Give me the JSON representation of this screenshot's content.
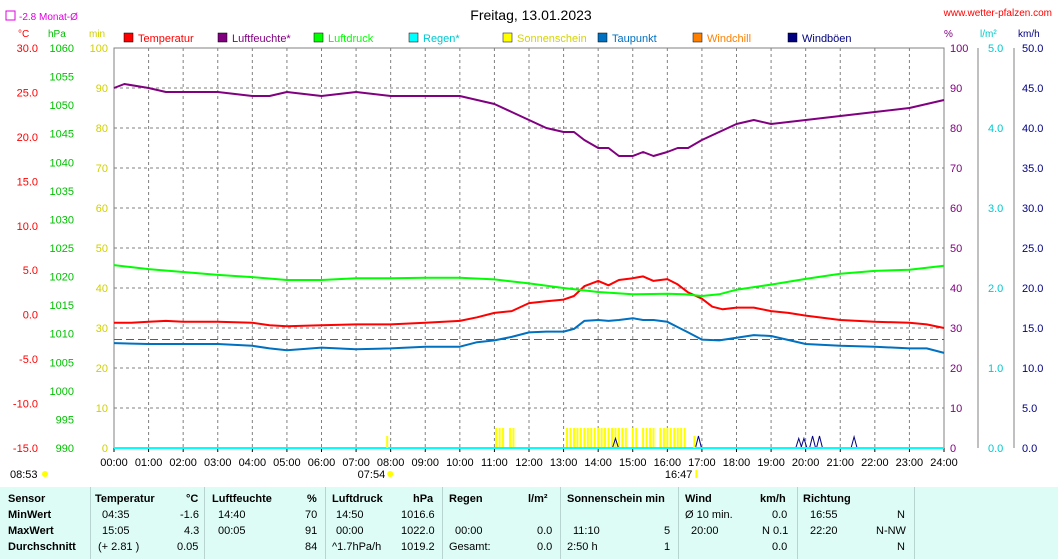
{
  "title": "Freitag, 13.01.2023",
  "website": "www.wetter-pfalzen.com",
  "monthly_avg_label": "-2.8 Monat-Ø",
  "units": {
    "temp": "°C",
    "pressure": "hPa",
    "sun": "min",
    "percent": "%",
    "rain": "l/m²",
    "wind": "km/h"
  },
  "legend": [
    {
      "label": "Temperatur",
      "color": "#ff0000"
    },
    {
      "label": "Luftfeuchte*",
      "color": "#800080"
    },
    {
      "label": "Luftdruck",
      "color": "#00ff00"
    },
    {
      "label": "Regen*",
      "color": "#00ffff"
    },
    {
      "label": "Sonnenschein",
      "color": "#ffff00"
    },
    {
      "label": "Taupunkt",
      "color": "#0070c0"
    },
    {
      "label": "Windchill",
      "color": "#ff8000"
    },
    {
      "label": "Windböen",
      "color": "#000080"
    }
  ],
  "sun_times": {
    "sunrise": "07:54",
    "sunset": "16:47",
    "first": "08:53"
  },
  "chart_data": {
    "type": "line",
    "title": "Freitag, 13.01.2023",
    "x_ticks": [
      "00:00",
      "01:00",
      "02:00",
      "03:00",
      "04:00",
      "05:00",
      "06:00",
      "07:00",
      "08:00",
      "09:00",
      "10:00",
      "11:00",
      "12:00",
      "13:00",
      "14:00",
      "15:00",
      "16:00",
      "17:00",
      "18:00",
      "19:00",
      "20:00",
      "21:00",
      "22:00",
      "23:00",
      "24:00"
    ],
    "axes": {
      "temp": {
        "unit": "°C",
        "ticks": [
          "30.0",
          "25.0",
          "20.0",
          "15.0",
          "10.0",
          "5.0",
          "0.0",
          "-5.0",
          "-10.0",
          "-15.0"
        ],
        "range": [
          -15,
          30
        ]
      },
      "pressure": {
        "unit": "hPa",
        "ticks": [
          "1060",
          "1055",
          "1050",
          "1045",
          "1040",
          "1035",
          "1030",
          "1025",
          "1020",
          "1015",
          "1010",
          "1005",
          "1000",
          "995",
          "990"
        ],
        "range": [
          990,
          1060
        ]
      },
      "sun": {
        "unit": "min",
        "ticks": [
          "100",
          "90",
          "80",
          "70",
          "60",
          "50",
          "40",
          "30",
          "20",
          "10",
          "0"
        ],
        "range": [
          0,
          100
        ]
      },
      "humidity": {
        "unit": "%",
        "ticks": [
          "100",
          "90",
          "80",
          "70",
          "60",
          "50",
          "40",
          "30",
          "20",
          "10",
          "0"
        ],
        "range": [
          0,
          100
        ]
      },
      "rain": {
        "unit": "l/m²",
        "ticks": [
          "5.0",
          "4.0",
          "3.0",
          "2.0",
          "1.0",
          "0.0"
        ],
        "range": [
          0,
          5
        ]
      },
      "wind": {
        "unit": "km/h",
        "ticks": [
          "50.0",
          "45.0",
          "40.0",
          "35.0",
          "30.0",
          "25.0",
          "20.0",
          "15.0",
          "10.0",
          "5.0",
          "0.0"
        ],
        "range": [
          0,
          50
        ]
      }
    },
    "monthly_avg_temp": -2.8,
    "series": [
      {
        "name": "Temperatur",
        "axis": "temp",
        "color": "#ff0000",
        "x": [
          0,
          0.5,
          1,
          1.5,
          2,
          3,
          4,
          4.5,
          5,
          6,
          7,
          8,
          9,
          10,
          10.5,
          11,
          11.5,
          12,
          12.5,
          13,
          13.3,
          13.6,
          14,
          14.3,
          14.6,
          15,
          15.3,
          15.6,
          16,
          16.3,
          16.6,
          17,
          17.3,
          17.6,
          18,
          18.5,
          19,
          19.5,
          20,
          21,
          22,
          23,
          23.5,
          24
        ],
        "y": [
          -0.9,
          -0.9,
          -0.8,
          -0.7,
          -0.8,
          -0.8,
          -0.9,
          -1.2,
          -1.3,
          -1.2,
          -1.1,
          -1.1,
          -0.9,
          -0.7,
          -0.3,
          0.2,
          0.4,
          1.3,
          1.5,
          1.7,
          2.1,
          3.2,
          3.8,
          3.3,
          3.9,
          4.1,
          4.3,
          3.8,
          4.0,
          3.4,
          2.5,
          1.8,
          0.9,
          0.6,
          0.8,
          0.8,
          0.4,
          0.2,
          -0.1,
          -0.6,
          -0.8,
          -0.9,
          -1.1,
          -1.5
        ]
      },
      {
        "name": "Luftfeuchte*",
        "axis": "humidity",
        "color": "#800080",
        "x": [
          0,
          0.3,
          1,
          1.5,
          2,
          3,
          4,
          4.5,
          5,
          6,
          7,
          8,
          9,
          10,
          10.5,
          11,
          11.5,
          12,
          12.5,
          13,
          13.3,
          13.6,
          14,
          14.3,
          14.6,
          15,
          15.3,
          15.6,
          16,
          16.3,
          16.6,
          17,
          17.5,
          18,
          18.5,
          19,
          20,
          21,
          22,
          23,
          23.5,
          24
        ],
        "y": [
          90,
          91,
          90,
          89,
          89,
          89,
          88,
          88,
          89,
          88,
          89,
          88,
          88,
          88,
          87,
          86,
          84,
          82,
          80,
          79,
          79,
          77,
          75,
          75,
          73,
          73,
          74,
          73,
          74,
          75,
          75,
          77,
          79,
          81,
          82,
          81,
          82,
          83,
          84,
          85,
          86,
          87
        ]
      },
      {
        "name": "Luftdruck",
        "axis": "pressure",
        "color": "#00ff00",
        "x": [
          0,
          1,
          2,
          3,
          4,
          5,
          6,
          7,
          8,
          9,
          10,
          11,
          12,
          13,
          14,
          15,
          16,
          16.5,
          17,
          17.5,
          18,
          19,
          20,
          21,
          22,
          23,
          24
        ],
        "y": [
          1022.0,
          1021.3,
          1020.8,
          1020.3,
          1019.9,
          1019.4,
          1019.4,
          1019.7,
          1019.7,
          1019.8,
          1019.8,
          1019.5,
          1018.8,
          1018.0,
          1017.3,
          1016.9,
          1017.0,
          1016.9,
          1016.6,
          1016.9,
          1017.7,
          1018.6,
          1019.6,
          1020.5,
          1021.0,
          1021.2,
          1021.9
        ]
      },
      {
        "name": "Taupunkt",
        "axis": "temp",
        "color": "#0070c0",
        "x": [
          0,
          1,
          2,
          3,
          4,
          4.5,
          5,
          6,
          7,
          8,
          9,
          10,
          10.5,
          11,
          11.5,
          12,
          12.5,
          13,
          13.3,
          13.6,
          14,
          14.3,
          14.6,
          15,
          15.3,
          15.6,
          16,
          16.3,
          16.6,
          17,
          17.5,
          18,
          18.5,
          19,
          20,
          21,
          22,
          23,
          23.5,
          24
        ],
        "y": [
          -3.2,
          -3.3,
          -3.3,
          -3.3,
          -3.5,
          -3.8,
          -4.0,
          -3.7,
          -3.9,
          -3.8,
          -3.6,
          -3.6,
          -3.1,
          -2.9,
          -2.5,
          -2.0,
          -1.9,
          -1.9,
          -1.6,
          -0.7,
          -0.6,
          -0.7,
          -0.6,
          -0.4,
          -0.6,
          -0.6,
          -0.8,
          -1.4,
          -2.0,
          -2.8,
          -2.9,
          -2.6,
          -2.3,
          -2.4,
          -3.3,
          -3.5,
          -3.6,
          -3.8,
          -3.8,
          -4.3
        ]
      },
      {
        "name": "Sonnenschein",
        "axis": "sun",
        "color": "#ffff00",
        "type": "bar",
        "x": [
          11.05,
          11.15,
          11.25,
          11.45,
          11.55,
          13.1,
          13.2,
          13.3,
          13.4,
          13.5,
          13.6,
          13.7,
          13.8,
          13.9,
          14.0,
          14.1,
          14.2,
          14.3,
          14.4,
          14.5,
          14.6,
          14.7,
          14.8,
          15.0,
          15.1,
          15.3,
          15.4,
          15.5,
          15.6,
          15.8,
          15.9,
          16.0,
          16.1,
          16.2,
          16.3,
          16.4,
          16.5
        ],
        "y": [
          5,
          5,
          5,
          5,
          5,
          5,
          5,
          5,
          5,
          5,
          5,
          5,
          5,
          5,
          5,
          5,
          5,
          5,
          5,
          5,
          5,
          5,
          5,
          5,
          5,
          5,
          5,
          5,
          5,
          5,
          5,
          5,
          5,
          5,
          5,
          5,
          5
        ]
      },
      {
        "name": "Windböen",
        "axis": "wind",
        "color": "#000080",
        "type": "spikes",
        "x": [
          14.5,
          16.9,
          19.8,
          19.95,
          20.2,
          20.4,
          21.4
        ],
        "y": [
          1.2,
          1.5,
          1.2,
          1.2,
          1.5,
          1.5,
          1.4
        ]
      },
      {
        "name": "Regen*",
        "axis": "rain",
        "color": "#00ffff",
        "x": [
          0,
          24
        ],
        "y": [
          0,
          0
        ]
      }
    ]
  },
  "table": {
    "headers": [
      "Sensor",
      "Temperatur",
      "°C",
      "Luftfeuchte",
      "%",
      "Luftdruck",
      "hPa",
      "Regen",
      "l/m²",
      "Sonnenschein min",
      "Wind",
      "km/h",
      "Richtung"
    ],
    "rows": [
      {
        "label": "MinWert",
        "temp_time": "04:35",
        "temp_val": "-1.6",
        "hum_time": "14:40",
        "hum_val": "70",
        "press_time": "14:50",
        "press_val": "1016.6",
        "rain_time": "",
        "rain_val": "",
        "sun_time": "",
        "sun_val": "",
        "wind_time": "Ø 10 min.",
        "wind_val": "0.0",
        "dir_time": "16:55",
        "dir_val": "N"
      },
      {
        "label": "MaxWert",
        "temp_time": "15:05",
        "temp_val": "4.3",
        "hum_time": "00:05",
        "hum_val": "91",
        "press_time": "00:00",
        "press_val": "1022.0",
        "rain_time": "00:00",
        "rain_val": "0.0",
        "sun_time": "11:10",
        "sun_val": "5",
        "wind_time": "20:00",
        "wind_val": "N 0.1",
        "dir_time": "22:20",
        "dir_val": "N-NW"
      },
      {
        "label": "Durchschnitt",
        "temp_time": "(+ 2.81 )",
        "temp_val": "0.05",
        "hum_time": "",
        "hum_val": "84",
        "press_time": "^1.7hPa/h",
        "press_val": "1019.2",
        "rain_time": "Gesamt:",
        "rain_val": "0.0",
        "sun_time": "2:50 h",
        "sun_val": "1",
        "wind_time": "",
        "wind_val": "0.0",
        "dir_time": "",
        "dir_val": "N"
      }
    ]
  }
}
